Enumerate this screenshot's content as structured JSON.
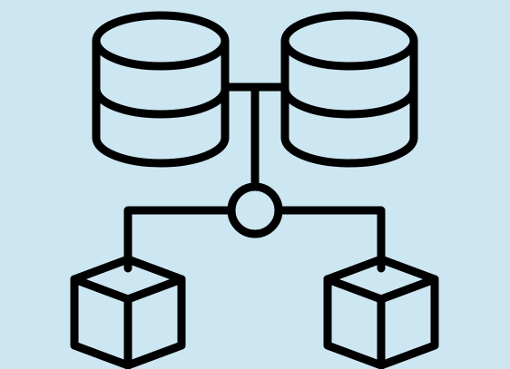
{
  "colors": {
    "background": "#cde7f2",
    "stroke": "#000000"
  },
  "icon": "database-network-icon",
  "elements": {
    "databases": [
      "database-icon",
      "database-icon"
    ],
    "hub": "connector-node-icon",
    "leaves": [
      "cube-icon",
      "cube-icon"
    ]
  }
}
